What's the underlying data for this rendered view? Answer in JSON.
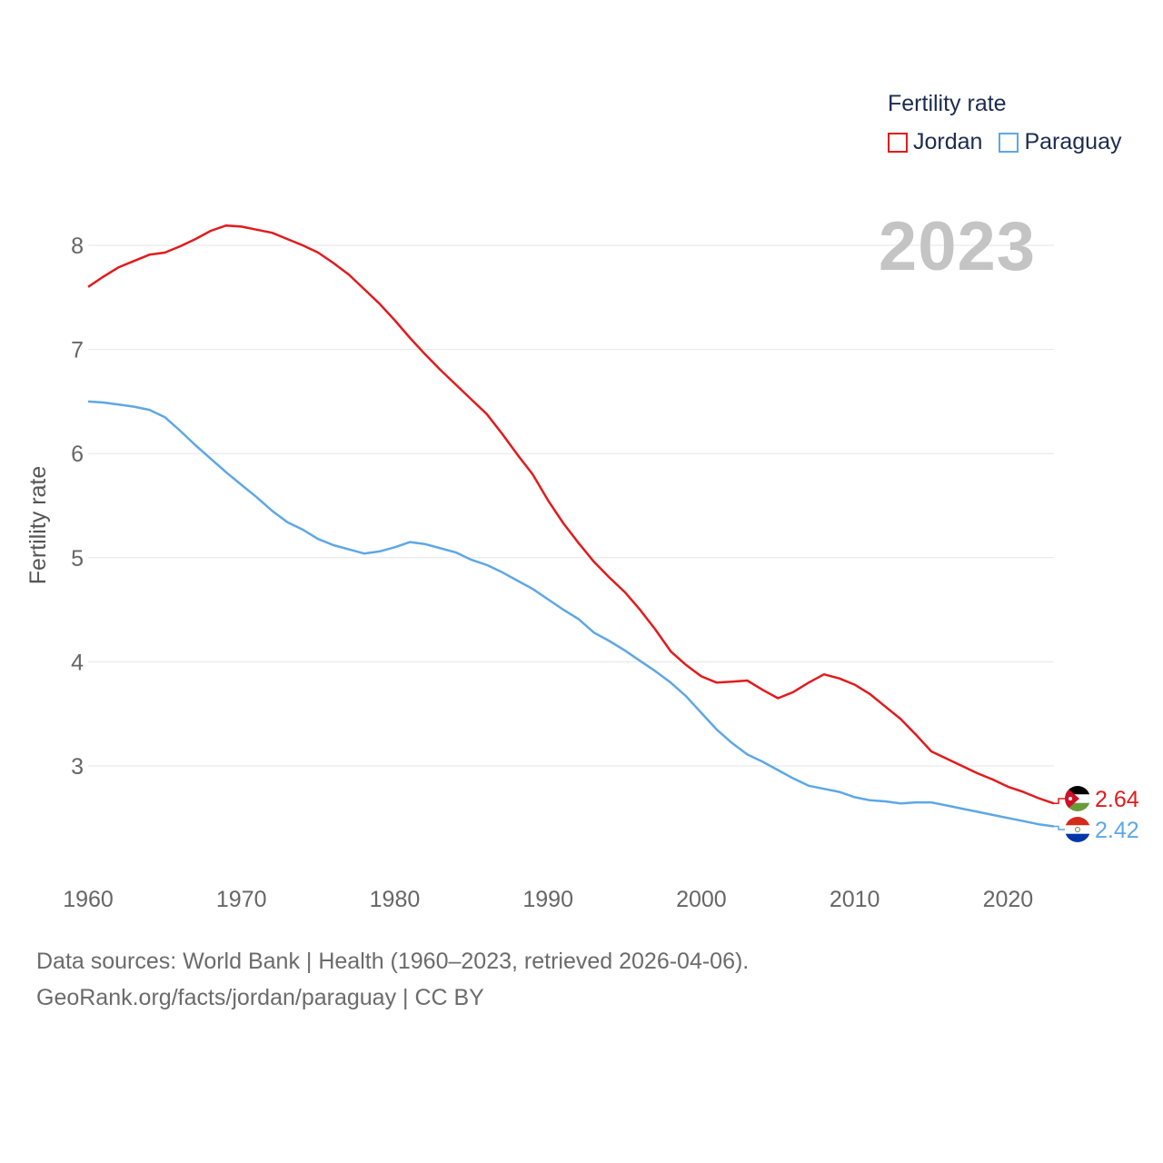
{
  "legend": {
    "title": "Fertility rate",
    "items": [
      {
        "label": "Jordan",
        "color": "#e31a1c"
      },
      {
        "label": "Paraguay",
        "color": "#5ea7e6"
      }
    ]
  },
  "year_display": "2023",
  "footer": {
    "line1": "Data sources: World Bank | Health (1960–2023, retrieved 2026-04-06).",
    "line2": "GeoRank.org/facts/jordan/paraguay | CC BY"
  },
  "chart_data": {
    "type": "line",
    "title": "",
    "xlabel": "",
    "ylabel": "Fertility rate",
    "xlim": [
      1960,
      2023
    ],
    "ylim": [
      2.0,
      8.6
    ],
    "xticks": [
      "1960",
      "1970",
      "1980",
      "1990",
      "2000",
      "2010",
      "2020"
    ],
    "yticks": [
      "3",
      "4",
      "5",
      "6",
      "7",
      "8"
    ],
    "grid": true,
    "x": [
      1960,
      1961,
      1962,
      1963,
      1964,
      1965,
      1966,
      1967,
      1968,
      1969,
      1970,
      1971,
      1972,
      1973,
      1974,
      1975,
      1976,
      1977,
      1978,
      1979,
      1980,
      1981,
      1982,
      1983,
      1984,
      1985,
      1986,
      1987,
      1988,
      1989,
      1990,
      1991,
      1992,
      1993,
      1994,
      1995,
      1996,
      1997,
      1998,
      1999,
      2000,
      2001,
      2002,
      2003,
      2004,
      2005,
      2006,
      2007,
      2008,
      2009,
      2010,
      2011,
      2012,
      2013,
      2014,
      2015,
      2016,
      2017,
      2018,
      2019,
      2020,
      2021,
      2022,
      2023
    ],
    "series": [
      {
        "name": "Jordan",
        "color": "#e31a1c",
        "end_label": "2.64",
        "values": [
          7.6,
          7.7,
          7.79,
          7.85,
          7.91,
          7.93,
          7.99,
          8.06,
          8.14,
          8.19,
          8.18,
          8.15,
          8.12,
          8.06,
          8.0,
          7.93,
          7.83,
          7.72,
          7.58,
          7.44,
          7.28,
          7.11,
          6.95,
          6.8,
          6.66,
          6.52,
          6.38,
          6.19,
          5.99,
          5.8,
          5.55,
          5.33,
          5.14,
          4.96,
          4.81,
          4.67,
          4.5,
          4.31,
          4.1,
          3.97,
          3.86,
          3.8,
          3.81,
          3.82,
          3.73,
          3.65,
          3.71,
          3.8,
          3.88,
          3.84,
          3.78,
          3.69,
          3.57,
          3.45,
          3.3,
          3.14,
          3.07,
          3.0,
          2.93,
          2.87,
          2.8,
          2.75,
          2.69,
          2.64
        ]
      },
      {
        "name": "Paraguay",
        "color": "#5ea7e6",
        "end_label": "2.42",
        "values": [
          6.5,
          6.49,
          6.47,
          6.45,
          6.42,
          6.35,
          6.22,
          6.08,
          5.95,
          5.82,
          5.7,
          5.58,
          5.45,
          5.34,
          5.27,
          5.18,
          5.12,
          5.08,
          5.04,
          5.06,
          5.1,
          5.15,
          5.13,
          5.09,
          5.05,
          4.98,
          4.93,
          4.86,
          4.78,
          4.7,
          4.6,
          4.5,
          4.41,
          4.28,
          4.2,
          4.11,
          4.01,
          3.91,
          3.8,
          3.67,
          3.51,
          3.35,
          3.22,
          3.11,
          3.04,
          2.96,
          2.88,
          2.81,
          2.78,
          2.75,
          2.7,
          2.67,
          2.66,
          2.64,
          2.65,
          2.65,
          2.62,
          2.59,
          2.56,
          2.53,
          2.5,
          2.47,
          2.44,
          2.42
        ]
      }
    ]
  }
}
